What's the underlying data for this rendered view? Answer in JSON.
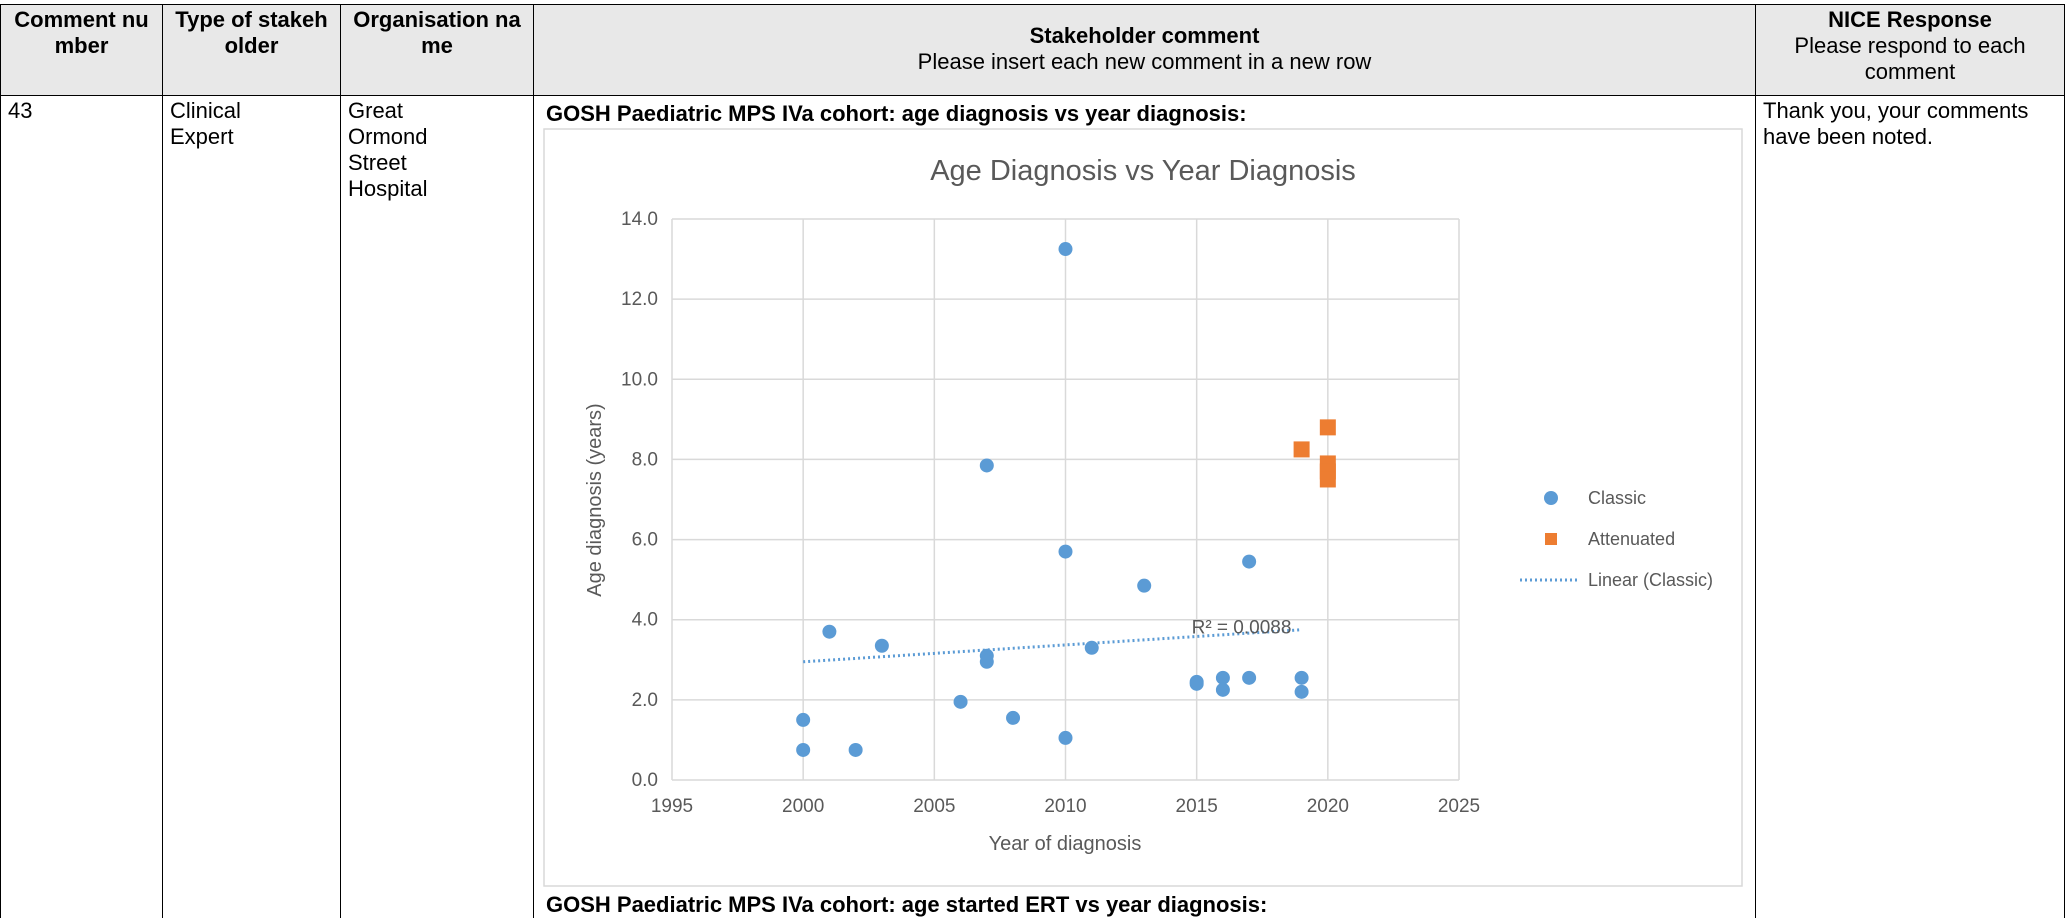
{
  "table": {
    "header": [
      {
        "title": "Comment number"
      },
      {
        "title": "Type of stakeholder"
      },
      {
        "title": "Organisation name"
      },
      {
        "title": "Stakeholder comment",
        "subtitle": "Please insert each new comment in a new row"
      },
      {
        "title": "NICE Response",
        "subtitle": "Please respond to each comment"
      }
    ],
    "rows": [
      {
        "number": "43",
        "stakeholder": "Clinical Expert",
        "organisation": "Great Ormond Street Hospital",
        "captions": [
          "GOSH Paediatric MPS IVa cohort: age diagnosis vs year diagnosis:",
          "GOSH Paediatric MPS IVa cohort: age started ERT vs year diagnosis:"
        ],
        "response": "Thank you, your comments have been noted."
      }
    ]
  },
  "chart_data": {
    "type": "scatter",
    "title": "Age Diagnosis vs Year Diagnosis",
    "x_label": "Year of diagnosis",
    "y_label": "Age diagnosis (years)",
    "xlim": [
      1995,
      2025
    ],
    "xticks": [
      1995,
      2000,
      2005,
      2010,
      2015,
      2020,
      2025
    ],
    "ylim": [
      0,
      14
    ],
    "yticks": [
      {
        "value": 0,
        "label": "0.0"
      },
      {
        "value": 2,
        "label": "2.0"
      },
      {
        "value": 4,
        "label": "4.0"
      },
      {
        "value": 6,
        "label": "6.0"
      },
      {
        "value": 8,
        "label": "8.0"
      },
      {
        "value": 10,
        "label": "10.0"
      },
      {
        "value": 12,
        "label": "12.0"
      },
      {
        "value": 14,
        "label": "14.0"
      }
    ],
    "grid": true,
    "legend": "right",
    "series": [
      {
        "name": "Classic",
        "color": "#5b9bd5",
        "marker": "circle",
        "x": [
          2000,
          2000,
          2001,
          2002,
          2003,
          2006,
          2007,
          2007,
          2007,
          2008,
          2010,
          2010,
          2010,
          2011,
          2013,
          2015,
          2015,
          2016,
          2016,
          2017,
          2017,
          2019,
          2019
        ],
        "values": [
          0.75,
          1.5,
          3.7,
          0.75,
          3.35,
          1.95,
          7.85,
          3.1,
          2.95,
          1.55,
          13.25,
          5.7,
          1.05,
          3.3,
          4.85,
          2.45,
          2.4,
          2.55,
          2.25,
          5.45,
          2.55,
          2.55,
          2.2
        ]
      },
      {
        "name": "Attenuated",
        "color": "#ed7d31",
        "marker": "square",
        "x": [
          2019,
          2020,
          2020,
          2020,
          2020
        ],
        "values": [
          8.25,
          8.8,
          7.9,
          7.7,
          7.5
        ]
      },
      {
        "name": "Linear (Classic)",
        "color": "#5b9bd5",
        "marker": "trendline",
        "x": [
          2000,
          2019
        ],
        "values": [
          2.95,
          3.75
        ]
      }
    ],
    "annotation": "R² = 0.0088"
  }
}
